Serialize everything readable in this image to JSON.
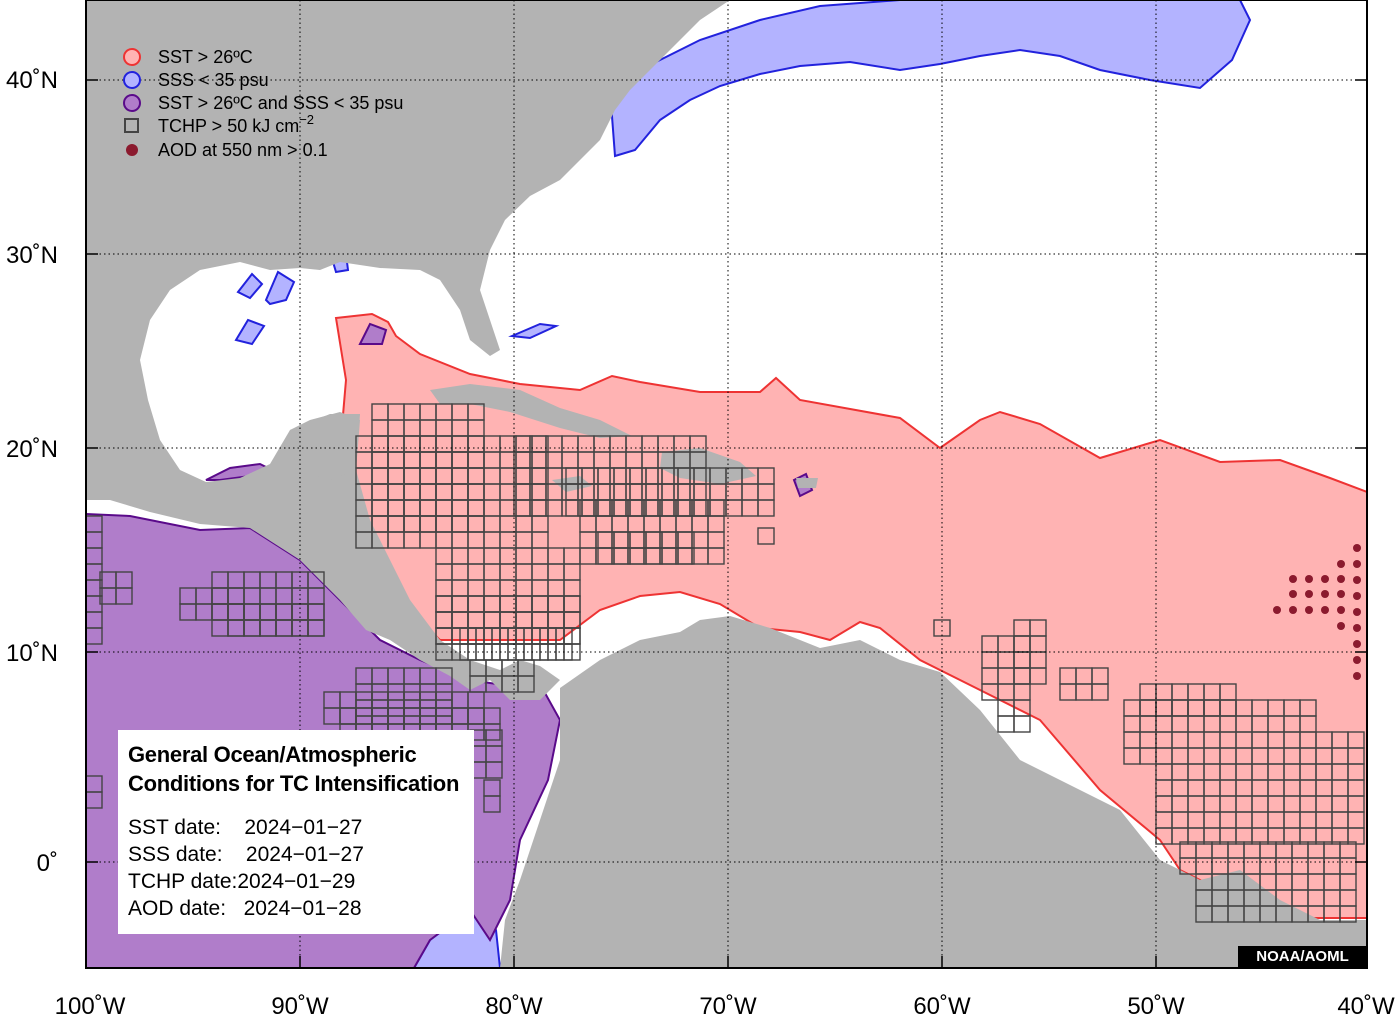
{
  "map": {
    "lon_range": [
      -100,
      -40
    ],
    "lat_range": [
      -5,
      44
    ],
    "colors": {
      "ocean": "#ffffff",
      "land": "#b3b3b3",
      "sst": "#ffb3b3",
      "sst_edge": "#ee3333",
      "sss": "#b3b3ff",
      "sss_edge": "#2222dd",
      "both": "#b07dca",
      "both_edge": "#5a0a8a",
      "tchp_edge": "#444444",
      "aod": "#8b1a2e",
      "grid": "#000000"
    },
    "x_ticks": [
      "100˚W",
      "90˚W",
      "80˚W",
      "70˚W",
      "60˚W",
      "50˚W",
      "40˚W"
    ],
    "y_ticks": [
      "40˚N",
      "30˚N",
      "20˚N",
      "10˚N",
      "0˚"
    ]
  },
  "legend": [
    {
      "label": "SST > 26ºC",
      "icon": "sst-circle-icon"
    },
    {
      "label": "SSS < 35 psu",
      "icon": "sss-circle-icon"
    },
    {
      "label": "SST > 26ºC and SSS < 35 psu",
      "icon": "combined-circle-icon"
    },
    {
      "label": "TCHP > 50 kJ cm",
      "superscript": "−2",
      "icon": "tchp-square-icon"
    },
    {
      "label": "AOD at 550 nm > 0.1",
      "icon": "aod-dot-icon"
    }
  ],
  "info_box": {
    "title_line1": "General Ocean/Atmospheric",
    "title_line2": "Conditions for TC Intensification",
    "dates": [
      {
        "label": "SST date:",
        "value": "2024−01−27"
      },
      {
        "label": "SSS date:",
        "value": "2024−01−27"
      },
      {
        "label": "TCHP date:",
        "value": "2024−01−29"
      },
      {
        "label": "AOD date:",
        "value": "2024−01−28"
      }
    ]
  },
  "credit": "NOAA/AOML"
}
